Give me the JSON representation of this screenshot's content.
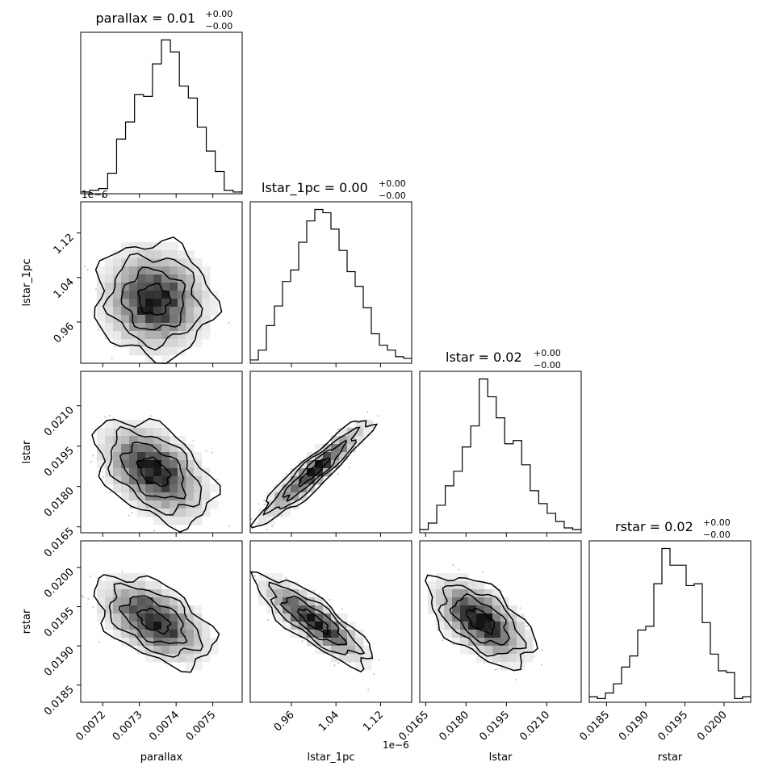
{
  "chart_data": {
    "type": "corner",
    "parameters": [
      "parallax",
      "lstar_1pc",
      "lstar",
      "rstar"
    ],
    "titles": [
      {
        "name": "parallax",
        "value": "0.01",
        "plus": "+0.00",
        "minus": "−0.00"
      },
      {
        "name": "lstar_1pc",
        "value": "0.00",
        "plus": "+0.00",
        "minus": "−0.00"
      },
      {
        "name": "lstar",
        "value": "0.02",
        "plus": "+0.00",
        "minus": "−0.00"
      },
      {
        "name": "rstar",
        "value": "0.02",
        "plus": "+0.00",
        "minus": "−0.00"
      }
    ],
    "xlabels": [
      "parallax",
      "lstar_1pc",
      "lstar",
      "rstar"
    ],
    "ylabels": [
      "",
      "lstar_1pc",
      "lstar",
      "rstar"
    ],
    "offsets": {
      "lstar_1pc_x": "1e−6",
      "lstar_1pc_y": "1e−6"
    },
    "axes": {
      "parallax": {
        "range": [
          0.00714,
          0.00758
        ],
        "ticks": [
          0.0072,
          0.0073,
          0.0074,
          0.0075
        ],
        "ticklabels": [
          "0.0072",
          "0.0073",
          "0.0074",
          "0.0075"
        ]
      },
      "lstar_1pc": {
        "range": [
          0.886,
          1.176
        ],
        "ticks": [
          0.96,
          1.04,
          1.12
        ],
        "ticklabels": [
          "0.96",
          "1.04",
          "1.12"
        ]
      },
      "lstar": {
        "range": [
          0.01628,
          0.02228
        ],
        "ticks": [
          0.0165,
          0.018,
          0.0195,
          0.021
        ],
        "ticklabels": [
          "0.0165",
          "0.0180",
          "0.0195",
          "0.0210"
        ]
      },
      "rstar": {
        "range": [
          0.01828,
          0.02034
        ],
        "ticks": [
          0.0185,
          0.019,
          0.0195,
          0.02
        ],
        "ticklabels": [
          "0.0185",
          "0.0190",
          "0.0195",
          "0.0200"
        ]
      }
    },
    "histograms": {
      "parallax": [
        1,
        2,
        3,
        12,
        32,
        42,
        58,
        57,
        76,
        90,
        83,
        63,
        56,
        39,
        25,
        13,
        2,
        1
      ],
      "lstar_1pc": [
        2,
        8,
        23,
        35,
        50,
        57,
        74,
        87,
        94,
        92,
        82,
        69,
        56,
        47,
        34,
        18,
        11,
        8,
        4,
        3
      ],
      "lstar": [
        2,
        6,
        17,
        29,
        38,
        53,
        66,
        95,
        84,
        71,
        55,
        57,
        42,
        26,
        18,
        12,
        7,
        3,
        2
      ],
      "rstar": [
        3,
        2,
        5,
        10,
        19,
        25,
        39,
        41,
        64,
        83,
        74,
        74,
        63,
        64,
        43,
        26,
        17,
        16,
        2,
        3
      ]
    },
    "correlations": {
      "lstar_1pc|parallax": -0.05,
      "lstar|parallax": -0.45,
      "lstar|lstar_1pc": 0.93,
      "rstar|parallax": -0.5,
      "rstar|lstar_1pc": -0.82,
      "rstar|lstar": -0.55
    },
    "means": {
      "parallax": 0.00734,
      "lstar_1pc": 1.0,
      "lstar": 0.01855,
      "rstar": 0.01932
    },
    "sigmas": {
      "parallax": 7e-05,
      "lstar_1pc": 0.045,
      "lstar": 0.00085,
      "rstar": 0.00025
    },
    "grid": false,
    "legend": false
  }
}
